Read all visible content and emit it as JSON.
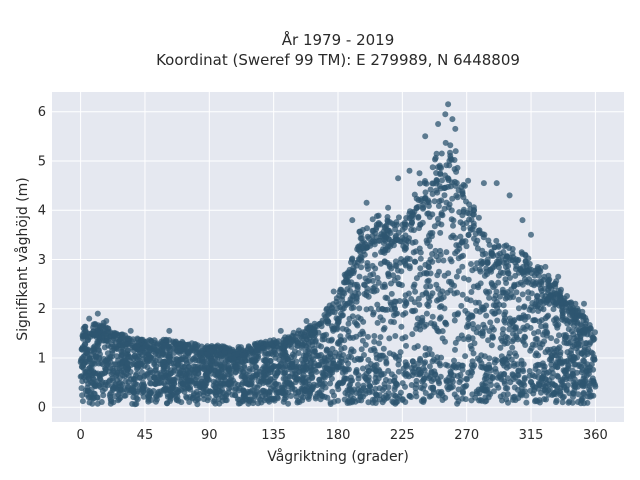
{
  "chart_data": {
    "type": "scatter",
    "title_line1": "År 1979 - 2019",
    "title_line2": "Koordinat (Sweref 99 TM): E 279989, N 6448809",
    "xlabel": "Vågriktning (grader)",
    "ylabel": "Signifikant våghöjd (m)",
    "xlim": [
      -20,
      380
    ],
    "ylim": [
      -0.3,
      6.4
    ],
    "x_ticks": [
      0,
      45,
      90,
      135,
      180,
      225,
      270,
      315,
      360
    ],
    "y_ticks": [
      0,
      1,
      2,
      3,
      4,
      5,
      6
    ],
    "grid": true,
    "background": "#e5e8f0",
    "marker_color": "#2e5670",
    "envelope": {
      "direction": [
        0,
        15,
        30,
        45,
        60,
        75,
        90,
        105,
        120,
        135,
        150,
        165,
        180,
        195,
        210,
        225,
        240,
        255,
        260,
        270,
        285,
        300,
        315,
        330,
        345,
        360
      ],
      "max_height": [
        1.6,
        1.7,
        1.45,
        1.35,
        1.35,
        1.3,
        1.25,
        1.2,
        1.25,
        1.35,
        1.5,
        1.7,
        2.3,
        3.5,
        3.9,
        3.8,
        4.7,
        5.3,
        5.4,
        4.3,
        3.4,
        3.2,
        3.0,
        2.6,
        2.1,
        1.6
      ]
    },
    "outliers": [
      {
        "x": 6,
        "y": 1.8
      },
      {
        "x": 12,
        "y": 1.9
      },
      {
        "x": 18,
        "y": 1.75
      },
      {
        "x": 35,
        "y": 1.55
      },
      {
        "x": 62,
        "y": 1.55
      },
      {
        "x": 140,
        "y": 1.55
      },
      {
        "x": 158,
        "y": 1.75
      },
      {
        "x": 177,
        "y": 2.35
      },
      {
        "x": 190,
        "y": 3.8
      },
      {
        "x": 200,
        "y": 4.15
      },
      {
        "x": 215,
        "y": 4.05
      },
      {
        "x": 222,
        "y": 4.65
      },
      {
        "x": 230,
        "y": 4.8
      },
      {
        "x": 237,
        "y": 4.75
      },
      {
        "x": 241,
        "y": 5.5
      },
      {
        "x": 250,
        "y": 5.75
      },
      {
        "x": 255,
        "y": 5.95
      },
      {
        "x": 257,
        "y": 6.15
      },
      {
        "x": 260,
        "y": 5.85
      },
      {
        "x": 262,
        "y": 5.65
      },
      {
        "x": 271,
        "y": 4.6
      },
      {
        "x": 282,
        "y": 4.55
      },
      {
        "x": 291,
        "y": 4.55
      },
      {
        "x": 300,
        "y": 4.3
      },
      {
        "x": 309,
        "y": 3.8
      },
      {
        "x": 315,
        "y": 3.5
      },
      {
        "x": 325,
        "y": 2.85
      },
      {
        "x": 334,
        "y": 2.65
      },
      {
        "x": 346,
        "y": 2.1
      },
      {
        "x": 352,
        "y": 2.1
      }
    ]
  }
}
